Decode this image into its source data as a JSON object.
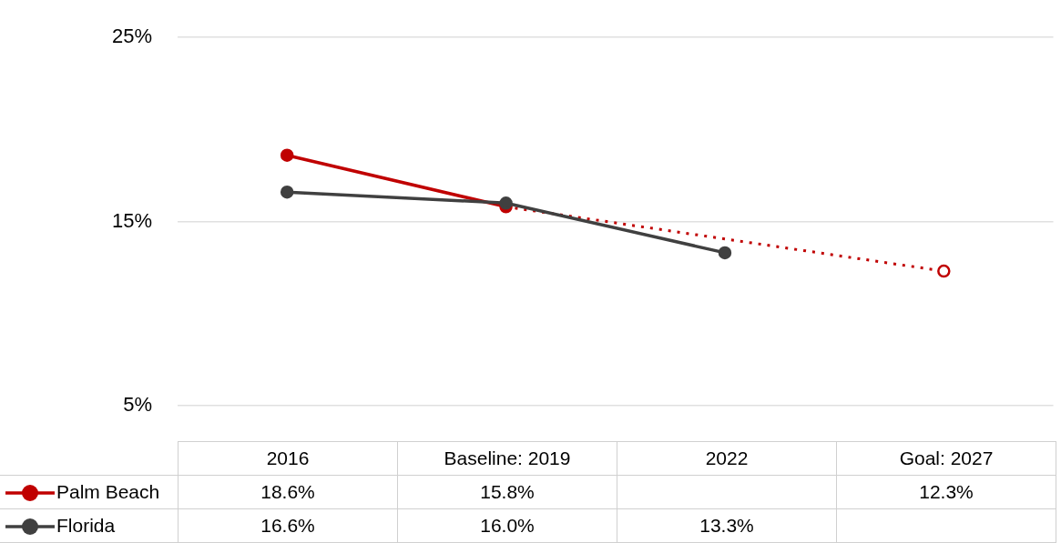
{
  "chart_data": {
    "type": "line",
    "categories": [
      "2016",
      "Baseline: 2019",
      "2022",
      "Goal: 2027"
    ],
    "series": [
      {
        "name": "Palm Beach",
        "color": "#c00000",
        "values": [
          18.6,
          15.8,
          null,
          12.3
        ],
        "value_labels": [
          "18.6%",
          "15.8%",
          null,
          "12.3%"
        ]
      },
      {
        "name": "Florida",
        "color": "#404040",
        "values": [
          16.6,
          16.0,
          13.3,
          null
        ],
        "value_labels": [
          "16.6%",
          "16.0%",
          "13.3%",
          null
        ]
      }
    ],
    "ylim": [
      5,
      25
    ],
    "yticks": [
      {
        "value": 5,
        "label": "5%"
      },
      {
        "value": 15,
        "label": "15%"
      },
      {
        "value": 25,
        "label": "25%"
      }
    ],
    "grid": "y",
    "legend": "bottom",
    "marker": "circle",
    "line_style": "solid"
  }
}
